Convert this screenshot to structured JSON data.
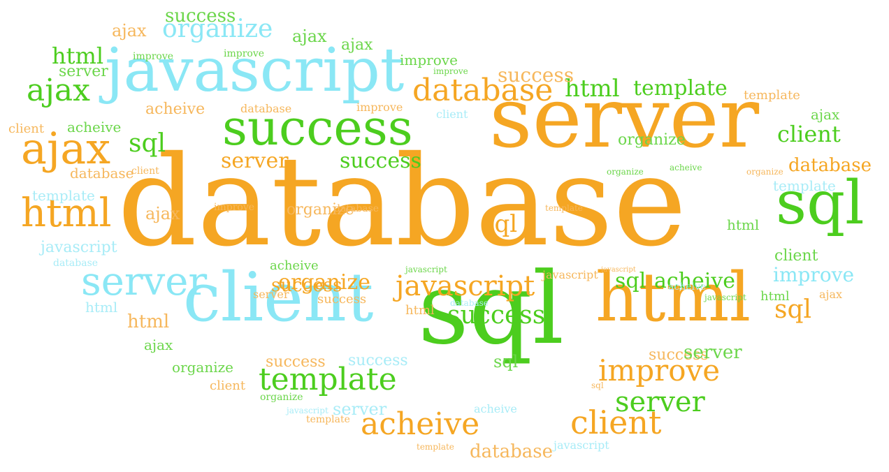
{
  "palette": {
    "orange": "#f5a623",
    "light_orange": "#f6b75c",
    "green": "#4ccd1e",
    "light_green": "#6bd64a",
    "cyan": "#8ae7f5",
    "light_cyan": "#a8ecf7"
  },
  "words": [
    {
      "text": "database",
      "color": "orange"
    },
    {
      "text": "server",
      "color": "orange"
    },
    {
      "text": "javascript",
      "color": "cyan"
    },
    {
      "text": "success",
      "color": "green"
    },
    {
      "text": "client",
      "color": "cyan"
    },
    {
      "text": "sql",
      "color": "green"
    },
    {
      "text": "html",
      "color": "orange"
    },
    {
      "text": "sql",
      "color": "green"
    },
    {
      "text": "ajax",
      "color": "orange"
    },
    {
      "text": "html",
      "color": "orange"
    },
    {
      "text": "server",
      "color": "cyan"
    },
    {
      "text": "ajax",
      "color": "green"
    },
    {
      "text": "organize",
      "color": "cyan"
    },
    {
      "text": "database",
      "color": "orange"
    },
    {
      "text": "template",
      "color": "green"
    },
    {
      "text": "acheive",
      "color": "orange"
    },
    {
      "text": "client",
      "color": "orange"
    },
    {
      "text": "improve",
      "color": "orange"
    },
    {
      "text": "server",
      "color": "green"
    },
    {
      "text": "javascript",
      "color": "orange"
    },
    {
      "text": "success",
      "color": "green"
    },
    {
      "text": "html",
      "color": "green"
    },
    {
      "text": "template",
      "color": "green"
    },
    {
      "text": "success",
      "color": "green"
    },
    {
      "text": "client",
      "color": "green"
    },
    {
      "text": "database",
      "color": "orange"
    },
    {
      "text": "server",
      "color": "orange"
    },
    {
      "text": "success",
      "color": "orange"
    },
    {
      "text": "organize",
      "color": "orange"
    },
    {
      "text": "improve",
      "color": "cyan"
    },
    {
      "text": "sql",
      "color": "orange"
    },
    {
      "text": "sql",
      "color": "green"
    },
    {
      "text": "acheive",
      "color": "green"
    },
    {
      "text": "sql",
      "color": "green"
    },
    {
      "text": "sql",
      "color": "orange"
    },
    {
      "text": "html",
      "color": "green"
    },
    {
      "text": "html",
      "color": "orange"
    },
    {
      "text": "improve",
      "color": "light_green"
    },
    {
      "text": "ajax",
      "color": "light_orange"
    },
    {
      "text": "ajax",
      "color": "light_green"
    },
    {
      "text": "server",
      "color": "light_orange"
    },
    {
      "text": "server",
      "color": "light_green"
    },
    {
      "text": "success",
      "color": "light_orange"
    },
    {
      "text": "success",
      "color": "light_green"
    },
    {
      "text": "success",
      "color": "light_cyan"
    },
    {
      "text": "acheive",
      "color": "light_orange"
    },
    {
      "text": "acheive",
      "color": "light_green"
    },
    {
      "text": "client",
      "color": "light_orange"
    },
    {
      "text": "database",
      "color": "light_orange"
    },
    {
      "text": "database",
      "color": "light_orange"
    },
    {
      "text": "template",
      "color": "light_cyan"
    },
    {
      "text": "template",
      "color": "light_cyan"
    },
    {
      "text": "javascript",
      "color": "light_cyan"
    },
    {
      "text": "organize",
      "color": "light_green"
    },
    {
      "text": "organize",
      "color": "light_orange"
    },
    {
      "text": "organize",
      "color": "light_green"
    },
    {
      "text": "html",
      "color": "light_cyan"
    },
    {
      "text": "html",
      "color": "light_green"
    },
    {
      "text": "html",
      "color": "light_orange"
    },
    {
      "text": "html",
      "color": "light_green"
    },
    {
      "text": "html",
      "color": "light_orange"
    },
    {
      "text": "ajax",
      "color": "light_orange"
    },
    {
      "text": "ajax",
      "color": "light_green"
    },
    {
      "text": "ajax",
      "color": "light_orange"
    },
    {
      "text": "ajax",
      "color": "light_green"
    },
    {
      "text": "ajax",
      "color": "light_green"
    },
    {
      "text": "improve",
      "color": "light_green"
    },
    {
      "text": "improve",
      "color": "light_green"
    },
    {
      "text": "improve",
      "color": "light_orange"
    },
    {
      "text": "improve",
      "color": "light_orange"
    },
    {
      "text": "improve",
      "color": "light_green"
    },
    {
      "text": "acheive",
      "color": "light_green"
    },
    {
      "text": "acheive",
      "color": "light_cyan"
    },
    {
      "text": "acheive",
      "color": "light_cyan"
    },
    {
      "text": "acheive",
      "color": "light_green"
    },
    {
      "text": "success",
      "color": "light_orange"
    },
    {
      "text": "success",
      "color": "light_orange"
    },
    {
      "text": "success",
      "color": "light_orange"
    },
    {
      "text": "server",
      "color": "light_green"
    },
    {
      "text": "server",
      "color": "light_orange"
    },
    {
      "text": "server",
      "color": "light_orange"
    },
    {
      "text": "server",
      "color": "light_cyan"
    },
    {
      "text": "client",
      "color": "light_orange"
    },
    {
      "text": "client",
      "color": "light_cyan"
    },
    {
      "text": "client",
      "color": "light_green"
    },
    {
      "text": "client",
      "color": "light_cyan"
    },
    {
      "text": "client",
      "color": "light_orange"
    },
    {
      "text": "database",
      "color": "light_cyan"
    },
    {
      "text": "database",
      "color": "light_cyan"
    },
    {
      "text": "database",
      "color": "light_orange"
    },
    {
      "text": "database",
      "color": "light_orange"
    },
    {
      "text": "database",
      "color": "light_orange"
    },
    {
      "text": "database",
      "color": "light_orange"
    },
    {
      "text": "database",
      "color": "light_orange"
    },
    {
      "text": "javascript",
      "color": "light_green"
    },
    {
      "text": "javascript",
      "color": "light_cyan"
    },
    {
      "text": "javascript",
      "color": "light_cyan"
    },
    {
      "text": "javascript",
      "color": "light_orange"
    },
    {
      "text": "javascript",
      "color": "light_green"
    },
    {
      "text": "javascript",
      "color": "light_green"
    },
    {
      "text": "javascript",
      "color": "light_orange"
    },
    {
      "text": "template",
      "color": "light_orange"
    },
    {
      "text": "template",
      "color": "light_orange"
    },
    {
      "text": "template",
      "color": "light_green"
    },
    {
      "text": "template",
      "color": "light_orange"
    },
    {
      "text": "template",
      "color": "light_orange"
    },
    {
      "text": "organize",
      "color": "light_green"
    },
    {
      "text": "organize",
      "color": "light_orange"
    },
    {
      "text": "organize",
      "color": "light_orange"
    },
    {
      "text": "organize",
      "color": "light_green"
    },
    {
      "text": "sql",
      "color": "light_green"
    },
    {
      "text": "sql",
      "color": "light_green"
    },
    {
      "text": "sql",
      "color": "light_green"
    },
    {
      "text": "sql",
      "color": "light_orange"
    },
    {
      "text": "sql",
      "color": "light_orange"
    },
    {
      "text": "sql",
      "color": "light_orange"
    },
    {
      "text": "success",
      "color": "light_cyan"
    },
    {
      "text": "success",
      "color": "light_orange"
    },
    {
      "text": "success",
      "color": "light_orange"
    },
    {
      "text": "server",
      "color": "light_orange"
    },
    {
      "text": "ajax",
      "color": "light_green"
    },
    {
      "text": "improve",
      "color": "light_orange"
    },
    {
      "text": "html",
      "color": "light_orange"
    }
  ]
}
